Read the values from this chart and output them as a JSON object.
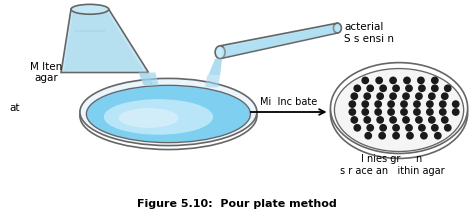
{
  "title": "Figure 5.10:  Pour plate method",
  "label_molten": "M lten\nagar",
  "label_at": "at",
  "label_bacterial": "acterial\nS s ensi n",
  "label_mix": "Mi  Inc bate",
  "label_colonies": "I nies gr     n\ns r ace an   ithin agar",
  "bg_color": "#ffffff",
  "light_blue": "#a8d8ea",
  "lighter_blue": "#c8ecf8",
  "flask_fill": "#c5e8f7",
  "petri_outer_fill": "#eaf6fc",
  "petri_fill": "#7ecff0",
  "petri_inner_fill": "#b8e6f8",
  "petri_highlight": "#d8f0fa",
  "edge_color": "#666666",
  "dot_color": "#1a1a1a",
  "tube_fill": "#b8e6f8",
  "pour_fill": "#9dd4ed"
}
